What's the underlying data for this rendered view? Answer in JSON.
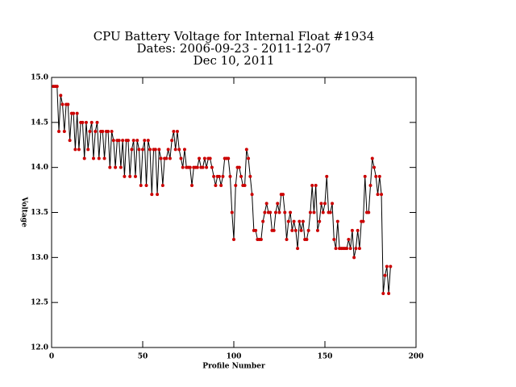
{
  "chart_data": {
    "type": "line",
    "title": [
      "CPU Battery Voltage for Internal Float #1934",
      "Dates:  2006-09-23 -  2011-12-07",
      "Dec 10, 2011"
    ],
    "xlabel": "Profile Number",
    "ylabel": "Voltage",
    "xlim": [
      0,
      200
    ],
    "ylim": [
      12,
      15
    ],
    "xticks": [
      0,
      50,
      100,
      150,
      200
    ],
    "yticks": [
      {
        "value": 12,
        "label": "12.0"
      },
      12.5,
      {
        "value": 13,
        "label": "13.0"
      },
      13.5,
      {
        "value": 14,
        "label": "14.0"
      },
      14.5,
      {
        "value": 15,
        "label": "15.0"
      }
    ],
    "series": [
      {
        "line_color": "#000000",
        "color": "#cc0000",
        "x": [
          1,
          2,
          3,
          4,
          5,
          6,
          7,
          8,
          9,
          10,
          11,
          12,
          13,
          14,
          15,
          16,
          17,
          18,
          19,
          20,
          21,
          22,
          23,
          24,
          25,
          26,
          27,
          28,
          29,
          30,
          31,
          32,
          33,
          34,
          35,
          36,
          37,
          38,
          39,
          40,
          41,
          42,
          43,
          44,
          45,
          46,
          47,
          48,
          49,
          50,
          51,
          52,
          53,
          54,
          55,
          56,
          57,
          58,
          59,
          60,
          61,
          62,
          63,
          64,
          65,
          66,
          67,
          68,
          69,
          70,
          71,
          72,
          73,
          74,
          75,
          76,
          77,
          78,
          79,
          80,
          81,
          82,
          83,
          84,
          85,
          86,
          87,
          88,
          89,
          90,
          91,
          92,
          93,
          94,
          95,
          96,
          97,
          98,
          99,
          100,
          101,
          102,
          103,
          104,
          105,
          106,
          107,
          108,
          109,
          110,
          111,
          112,
          113,
          114,
          115,
          116,
          117,
          118,
          119,
          120,
          121,
          122,
          123,
          124,
          125,
          126,
          127,
          128,
          129,
          130,
          131,
          132,
          133,
          134,
          135,
          136,
          137,
          138,
          139,
          140,
          141,
          142,
          143,
          144,
          145,
          146,
          147,
          148,
          149,
          150,
          151,
          152,
          153,
          154,
          155,
          156,
          157,
          158,
          159,
          160,
          161,
          162,
          163,
          164,
          165,
          166,
          167,
          168,
          169,
          170,
          171,
          172,
          173,
          174,
          175,
          176,
          177,
          178,
          179,
          180,
          181,
          182,
          183,
          184,
          185,
          186
        ],
        "values": [
          14.9,
          14.9,
          14.9,
          14.4,
          14.8,
          14.7,
          14.4,
          14.7,
          14.7,
          14.3,
          14.6,
          14.6,
          14.2,
          14.6,
          14.2,
          14.5,
          14.5,
          14.1,
          14.5,
          14.2,
          14.4,
          14.5,
          14.1,
          14.4,
          14.5,
          14.1,
          14.4,
          14.4,
          14.1,
          14.4,
          14.4,
          14.0,
          14.4,
          14.3,
          14.0,
          14.3,
          14.3,
          14.0,
          14.3,
          13.9,
          14.3,
          14.3,
          13.9,
          14.2,
          14.3,
          13.9,
          14.3,
          14.2,
          13.8,
          14.2,
          14.3,
          13.8,
          14.3,
          14.2,
          13.7,
          14.2,
          14.2,
          13.7,
          14.2,
          14.1,
          13.8,
          14.1,
          14.1,
          14.2,
          14.1,
          14.3,
          14.4,
          14.2,
          14.4,
          14.2,
          14.1,
          14.0,
          14.2,
          14.0,
          14.0,
          14.0,
          13.8,
          14.0,
          14.0,
          14.0,
          14.1,
          14.0,
          14.0,
          14.1,
          14.0,
          14.1,
          14.1,
          14.0,
          13.9,
          13.8,
          13.9,
          13.9,
          13.8,
          13.9,
          14.1,
          14.1,
          14.1,
          13.9,
          13.5,
          13.2,
          13.8,
          14.0,
          14.0,
          13.9,
          13.8,
          13.8,
          14.2,
          14.1,
          13.9,
          13.7,
          13.3,
          13.3,
          13.2,
          13.2,
          13.2,
          13.4,
          13.5,
          13.6,
          13.5,
          13.5,
          13.3,
          13.3,
          13.5,
          13.6,
          13.5,
          13.7,
          13.7,
          13.5,
          13.2,
          13.4,
          13.5,
          13.3,
          13.4,
          13.3,
          13.1,
          13.4,
          13.3,
          13.4,
          13.2,
          13.2,
          13.3,
          13.5,
          13.8,
          13.5,
          13.8,
          13.3,
          13.4,
          13.6,
          13.5,
          13.6,
          13.9,
          13.5,
          13.5,
          13.6,
          13.2,
          13.1,
          13.4,
          13.1,
          13.1,
          13.1,
          13.1,
          13.1,
          13.2,
          13.1,
          13.3,
          13.0,
          13.1,
          13.3,
          13.1,
          13.4,
          13.4,
          13.9,
          13.5,
          13.5,
          13.8,
          14.1,
          14.0,
          13.9,
          13.7,
          13.9,
          13.7,
          12.6,
          12.8,
          12.9,
          12.6,
          12.9
        ]
      }
    ]
  }
}
